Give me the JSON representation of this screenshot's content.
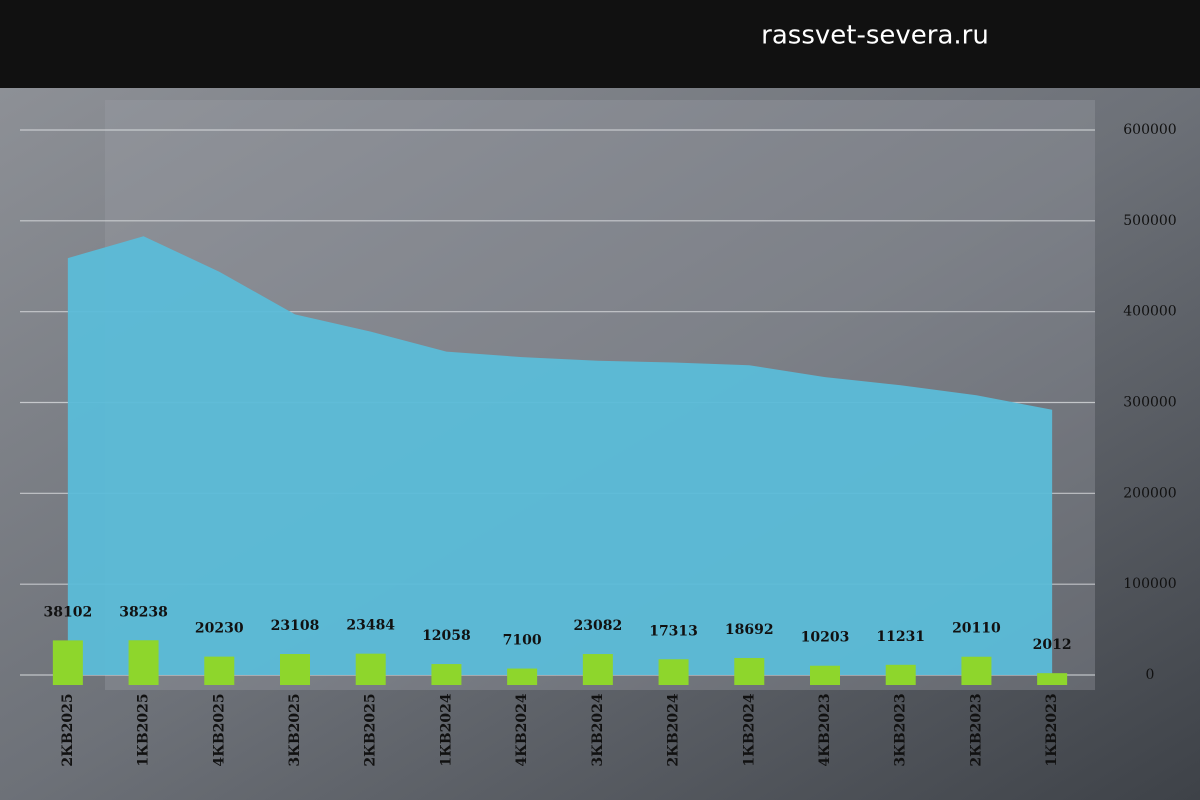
{
  "watermark": "rassvet-severa.ru",
  "chart_data": {
    "type": "area",
    "categories": [
      "2КВ2025",
      "1КВ2025",
      "4КВ2025",
      "3КВ2025",
      "2КВ2025",
      "1КВ2024",
      "4КВ2024",
      "3КВ2024",
      "2КВ2024",
      "1КВ2024",
      "4КВ2023",
      "3КВ2023",
      "2КВ2023",
      "1КВ2023"
    ],
    "series": [
      {
        "type": "area",
        "color": "#5bbcd8",
        "values": [
          459000,
          483000,
          444000,
          397000,
          378000,
          356000,
          350000,
          346000,
          344000,
          341000,
          328000,
          319000,
          308000,
          292000
        ]
      },
      {
        "type": "bar",
        "color": "#8ed62c",
        "values": [
          38102,
          38238,
          20230,
          23108,
          23484,
          12058,
          7100,
          23082,
          17313,
          18692,
          10203,
          11231,
          20110,
          2012
        ]
      }
    ],
    "ylim": [
      0,
      600000
    ],
    "yticks": [
      0,
      100000,
      200000,
      300000,
      400000,
      500000,
      600000
    ],
    "grid": true
  }
}
